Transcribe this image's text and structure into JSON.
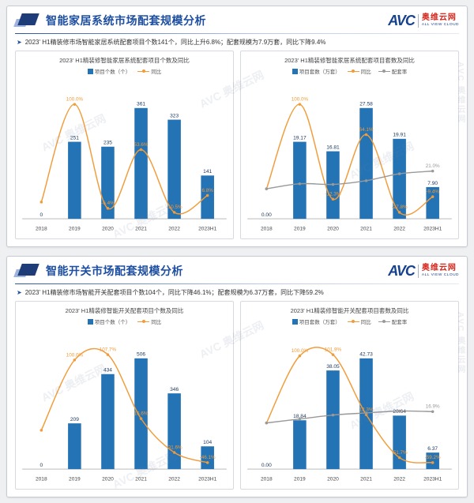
{
  "watermark": "AVC 奥维云网",
  "brand": {
    "logo_avc": "AVC",
    "logo_cn": "奥维云网",
    "logo_en": "ALL VIEW CLOUD"
  },
  "colors": {
    "bar": "#2473b5",
    "yoy": "#f29b38",
    "rate": "#999999",
    "bar_label": "#1f3a60",
    "axis": "#b0b0b0",
    "x_label": "#444444"
  },
  "panels": [
    {
      "title": "智能家居系统市场配套规模分析",
      "bullet": "2023' H1精装修市场智能家居系统配套项目个数141个，同比上升6.8%；配套规模为7.9万套，同比下降9.4%"
    },
    {
      "title": "智能开关市场配套规模分析",
      "bullet": "2023' H1精装修市场智能开关配套项目个数104个，同比下降46.1%；配套规模为6.37万套，同比下降59.2%"
    }
  ],
  "chart_data": [
    {
      "type": "bar-line",
      "title": "2023' H1精装修智能家居系统配套项目个数及同比",
      "categories": [
        "2018",
        "2019",
        "2020",
        "2021",
        "2022",
        "2023H1"
      ],
      "legend_position": "top",
      "grid": false,
      "bar": {
        "name": "项目个数（个）",
        "values": [
          0,
          251,
          235,
          361,
          323,
          141
        ],
        "labels": [
          "0",
          "251",
          "235",
          "361",
          "323",
          "141"
        ]
      },
      "lines": [
        {
          "name": "同比",
          "unit": "%",
          "values": [
            0,
            100.0,
            -6.4,
            53.6,
            -10.5,
            6.8
          ],
          "labels": [
            "",
            "100.0%",
            "-6.4%",
            "53.6%",
            "-10.5%",
            "6.8%"
          ]
        }
      ]
    },
    {
      "type": "bar-line",
      "title": "2023' H1精装修智能家居系统配套项目套数及同比",
      "categories": [
        "2018",
        "2019",
        "2020",
        "2021",
        "2022",
        "2023H1"
      ],
      "legend_position": "top",
      "grid": false,
      "bar": {
        "name": "项目套数（万套）",
        "values": [
          0.0,
          19.17,
          16.81,
          27.58,
          19.91,
          7.9
        ],
        "labels": [
          "0.00",
          "19.17",
          "16.81",
          "27.58",
          "19.91",
          "7.90"
        ]
      },
      "lines": [
        {
          "name": "同比",
          "unit": "%",
          "values": [
            0,
            100.0,
            -12.3,
            64.1,
            -27.8,
            -9.4
          ],
          "labels": [
            "",
            "100.0%",
            "-12.3%",
            "64.1%",
            "-27.8%",
            "-9.4%"
          ]
        },
        {
          "name": "配套率",
          "unit": "%",
          "values": [
            0,
            6.0,
            5.2,
            9.6,
            17.8,
            21.0
          ],
          "labels": [
            "",
            "",
            "",
            "",
            "",
            "21.0%"
          ]
        }
      ]
    },
    {
      "type": "bar-line",
      "title": "2023' H1精装修智能开关配套项目个数及同比",
      "categories": [
        "2018",
        "2019",
        "2020",
        "2021",
        "2022",
        "2023H1"
      ],
      "legend_position": "top",
      "grid": false,
      "bar": {
        "name": "项目个数（个）",
        "values": [
          0,
          209,
          434,
          506,
          346,
          104
        ],
        "labels": [
          "0",
          "209",
          "434",
          "506",
          "346",
          "104"
        ]
      },
      "lines": [
        {
          "name": "同比",
          "unit": "%",
          "values": [
            0,
            100.0,
            107.7,
            16.6,
            -31.6,
            -46.1
          ],
          "labels": [
            "",
            "100.0%",
            "107.7%",
            "16.6%",
            "-31.6%",
            "-46.1%"
          ]
        }
      ]
    },
    {
      "type": "bar-line",
      "title": "2023' H1精装修智能开关配套项目套数及同比",
      "categories": [
        "2018",
        "2019",
        "2020",
        "2021",
        "2022",
        "2023H1"
      ],
      "legend_position": "top",
      "grid": false,
      "bar": {
        "name": "项目套数（万套）",
        "values": [
          0.0,
          18.84,
          38.05,
          42.73,
          20.64,
          6.37
        ],
        "labels": [
          "0.00",
          "18.84",
          "38.05",
          "42.73",
          "20.64",
          "6.37"
        ]
      },
      "lines": [
        {
          "name": "同比",
          "unit": "%",
          "values": [
            0,
            100.0,
            101.9,
            12.3,
            -51.7,
            -59.2
          ],
          "labels": [
            "",
            "100.0%",
            "101.9%",
            "12.3%",
            "-51.7%",
            "-59.2%"
          ]
        },
        {
          "name": "配套率",
          "unit": "%",
          "values": [
            0,
            5.9,
            11.7,
            14.9,
            17.8,
            16.9
          ],
          "labels": [
            "",
            "",
            "",
            "",
            "",
            "16.9%"
          ]
        }
      ]
    }
  ]
}
